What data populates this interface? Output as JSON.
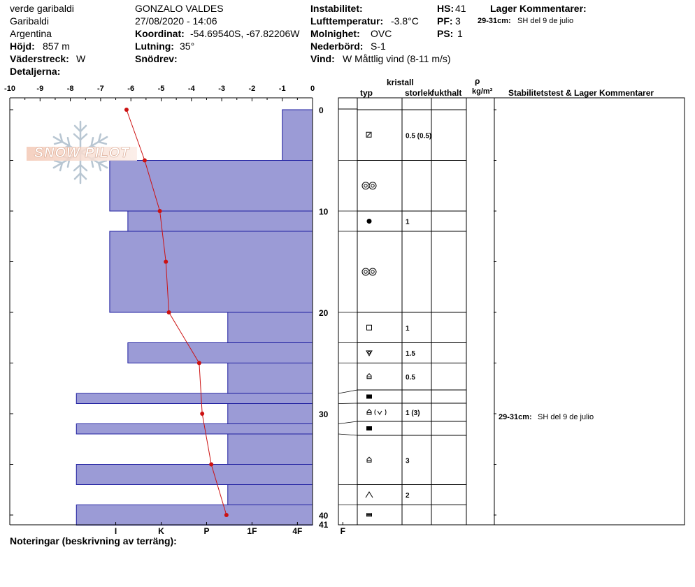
{
  "header": {
    "col1": [
      "verde garibaldi",
      "Garibaldi",
      "Argentina"
    ],
    "elevation_label": "Höjd:",
    "elevation_value": "857 m",
    "aspect_label": "Väderstreck:",
    "aspect_value": "W",
    "details_label": "Detaljerna:",
    "observer": "GONZALO VALDES",
    "datetime": "27/08/2020 - 14:06",
    "coord_label": "Koordinat:",
    "coord_value": "-54.69540S, -67.82206W",
    "slope_label": "Lutning:",
    "slope_value": "35°",
    "drift_label": "Snödrev:",
    "instability_label": "Instabilitet:",
    "airtemp_label": "Lufttemperatur:",
    "airtemp_value": "-3.8°C",
    "sky_label": "Molnighet:",
    "sky_value": "OVC",
    "precip_label": "Nederbörd:",
    "precip_value": "S-1",
    "wind_label": "Vind:",
    "wind_value": "W Måttlig vind (8-11 m/s)",
    "hs_label": "HS:",
    "hs_value": "41",
    "pf_label": "PF:",
    "pf_value": "3",
    "ps_label": "PS:",
    "ps_value": "1",
    "layer_comments_label": "Lager Kommentarer:",
    "layer_comment_depth": "29-31cm:",
    "layer_comment_text": "SH del 9 de julio"
  },
  "logo_text": "SNOW PILOT",
  "table": {
    "col_kristall": "kristall",
    "col_typ": "typ",
    "col_storlek": "storlek",
    "col_fukthalt": "fukthalt",
    "col_rho": "ρ",
    "col_rho_unit": "kg/m³",
    "col_stab": "Stabilitetstest & Lager Kommentarer"
  },
  "notes_label": "Noteringar (beskrivning av terräng):",
  "colors": {
    "hardness_fill": "#9b9bd6",
    "hardness_stroke": "#1f1fa0",
    "temp_line": "#cc1111"
  },
  "chart_data": {
    "type": "snow_profile",
    "temp_axis": {
      "ticks": [
        -10,
        -9,
        -8,
        -7,
        -6,
        -5,
        -4,
        -3,
        -2,
        -1,
        0
      ],
      "range": [
        -10,
        0
      ]
    },
    "depth_axis": {
      "ticks": [
        0,
        10,
        20,
        30,
        40
      ],
      "extra_label": 41,
      "range": [
        0,
        41
      ]
    },
    "hardness_axis": {
      "labels": [
        "I",
        "K",
        "P",
        "1F",
        "4F",
        "F"
      ],
      "values": [
        6.5,
        5,
        3.5,
        2,
        0.5,
        -1
      ]
    },
    "hardness_layers": [
      {
        "top": 0,
        "bottom": 5,
        "hardness": 1.0
      },
      {
        "top": 5,
        "bottom": 10,
        "hardness": 6.7
      },
      {
        "top": 10,
        "bottom": 12,
        "hardness": 6.1
      },
      {
        "top": 12,
        "bottom": 20,
        "hardness": 6.7
      },
      {
        "top": 20,
        "bottom": 23,
        "hardness": 2.8
      },
      {
        "top": 23,
        "bottom": 25,
        "hardness": 6.1
      },
      {
        "top": 25,
        "bottom": 28,
        "hardness": 2.8
      },
      {
        "top": 28,
        "bottom": 29,
        "hardness": 7.8
      },
      {
        "top": 29,
        "bottom": 31,
        "hardness": 2.8
      },
      {
        "top": 31,
        "bottom": 32,
        "hardness": 7.8
      },
      {
        "top": 32,
        "bottom": 35,
        "hardness": 2.8
      },
      {
        "top": 35,
        "bottom": 37,
        "hardness": 7.8
      },
      {
        "top": 37,
        "bottom": 39,
        "hardness": 2.8
      },
      {
        "top": 39,
        "bottom": 41,
        "hardness": 7.8
      }
    ],
    "temperature_profile": [
      {
        "depth": 0,
        "temp": -6.2
      },
      {
        "depth": 5,
        "temp": -5.6
      },
      {
        "depth": 10,
        "temp": -5.1
      },
      {
        "depth": 15,
        "temp": -4.9
      },
      {
        "depth": 20,
        "temp": -4.8
      },
      {
        "depth": 25,
        "temp": -3.8
      },
      {
        "depth": 30,
        "temp": -3.7
      },
      {
        "depth": 35,
        "temp": -3.4
      },
      {
        "depth": 40,
        "temp": -2.9
      }
    ],
    "table_layers": [
      {
        "top": 0,
        "bottom": 5,
        "grain": "faceted-on-rounded",
        "size": "0.5 (0.5)"
      },
      {
        "top": 5,
        "bottom": 10,
        "grain": "melt-forms",
        "size": ""
      },
      {
        "top": 10,
        "bottom": 12,
        "grain": "rounded",
        "size": "1"
      },
      {
        "top": 12,
        "bottom": 20,
        "grain": "melt-forms",
        "size": ""
      },
      {
        "top": 20,
        "bottom": 23,
        "grain": "faceted",
        "size": "1"
      },
      {
        "top": 23,
        "bottom": 25,
        "grain": "mixed",
        "size": "1.5"
      },
      {
        "top": 25,
        "bottom": 28,
        "grain": "depth-hoar",
        "size": "0.5"
      },
      {
        "top": 28,
        "bottom": 29,
        "grain": "ice",
        "size": ""
      },
      {
        "top": 29,
        "bottom": 31,
        "grain": "depth-hoar-surface-hoar",
        "size": "1 (3)"
      },
      {
        "top": 31,
        "bottom": 32,
        "grain": "ice",
        "size": ""
      },
      {
        "top": 32,
        "bottom": 37,
        "grain": "depth-hoar",
        "size": "3"
      },
      {
        "top": 37,
        "bottom": 39,
        "grain": "cup",
        "size": "2"
      },
      {
        "top": 39,
        "bottom": 41,
        "grain": "ice-hollow",
        "size": ""
      }
    ]
  }
}
